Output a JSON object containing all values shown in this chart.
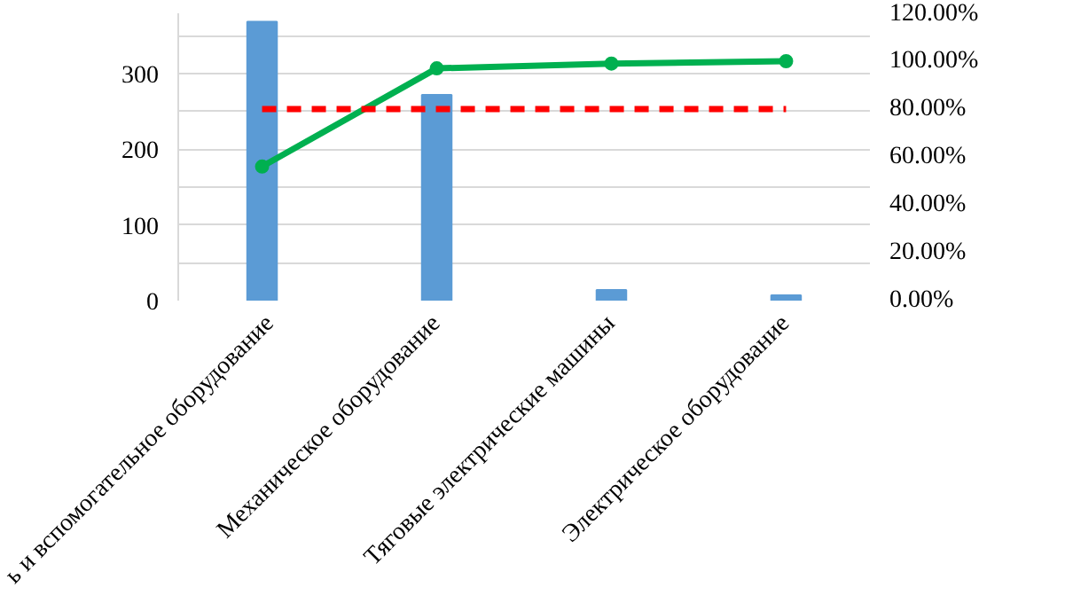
{
  "chart_data": {
    "type": "bar",
    "categories": [
      "ь и вспомогательное оборудование",
      "Механическое оборудование",
      "Тяговые электрические машины",
      "Электрическое оборудование"
    ],
    "series": [
      {
        "color": "#5b9bd5",
        "values": [
          369,
          272,
          14,
          7
        ]
      },
      {
        "type": "line",
        "axis": "y2",
        "color": "#00b050",
        "marker": "circle",
        "values": [
          56,
          97,
          99,
          100
        ]
      },
      {
        "type": "line",
        "axis": "y2",
        "color": "#ff0000",
        "line_style": "dashed",
        "marker": "none",
        "values": [
          80,
          80,
          80,
          80
        ]
      }
    ],
    "ylim": [
      0,
      380
    ],
    "yticks": [
      0,
      {
        "value": 50,
        "label": null
      },
      100,
      {
        "value": 150,
        "label": null
      },
      200,
      {
        "value": 250,
        "label": null
      },
      300,
      {
        "value": 350,
        "label": null
      }
    ],
    "y2lim": [
      0,
      120
    ],
    "y2ticks": [
      {
        "value": 0,
        "label": "0.00%"
      },
      {
        "value": 20,
        "label": "20.00%"
      },
      {
        "value": 40,
        "label": "40.00%"
      },
      {
        "value": 60,
        "label": "60.00%"
      },
      {
        "value": 80,
        "label": "80.00%"
      },
      {
        "value": 100,
        "label": "100.00%"
      },
      {
        "value": 120,
        "label": "120.00%"
      }
    ],
    "grid": "y"
  }
}
